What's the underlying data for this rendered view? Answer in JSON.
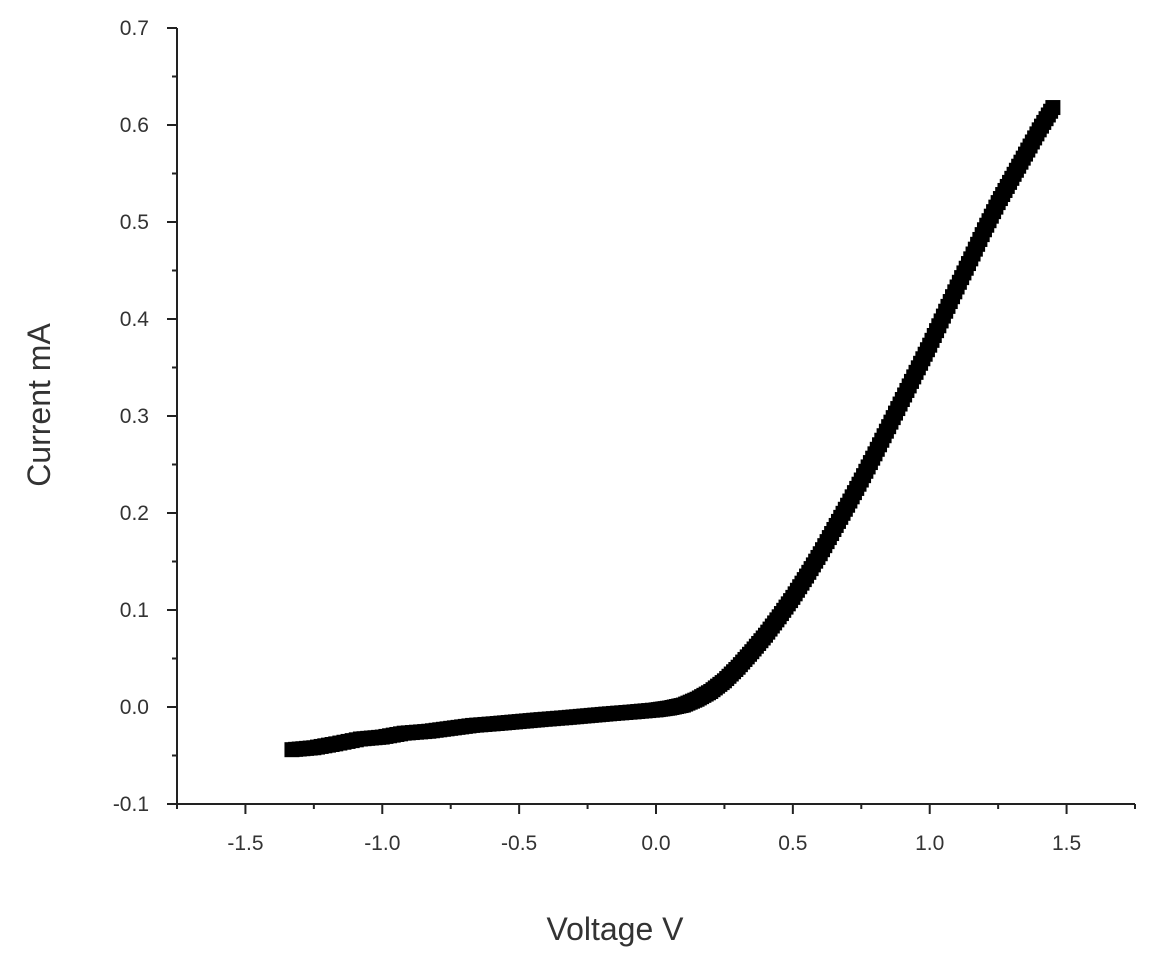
{
  "chart_data": {
    "type": "scatter",
    "xlabel": "Voltage V",
    "ylabel": "Current mA",
    "xlim": [
      -1.75,
      1.75
    ],
    "ylim": [
      -0.1,
      0.7
    ],
    "x_ticks": [
      -1.5,
      -1.0,
      -0.5,
      0.0,
      0.5,
      1.0,
      1.5
    ],
    "x_tick_labels": [
      "-1.5",
      "-1.0",
      "-0.5",
      "0.0",
      "0.5",
      "1.0",
      "1.5"
    ],
    "y_ticks": [
      -0.1,
      0.0,
      0.1,
      0.2,
      0.3,
      0.4,
      0.5,
      0.6,
      0.7
    ],
    "y_tick_labels": [
      "-0.1",
      "0.0",
      "0.1",
      "0.2",
      "0.3",
      "0.4",
      "0.5",
      "0.6",
      "0.7"
    ],
    "grid": false,
    "marker_color": "#000000",
    "series": [
      {
        "x": [
          -1.33,
          -1.25,
          -1.17,
          -1.08,
          -1.0,
          -0.92,
          -0.83,
          -0.75,
          -0.67,
          -0.58,
          -0.5,
          -0.42,
          -0.33,
          -0.25,
          -0.17,
          -0.08,
          0.0,
          0.05,
          0.1,
          0.15,
          0.2,
          0.25,
          0.3,
          0.35,
          0.4,
          0.45,
          0.5,
          0.55,
          0.6,
          0.65,
          0.7,
          0.75,
          0.8,
          0.85,
          0.9,
          0.95,
          1.0,
          1.05,
          1.1,
          1.15,
          1.2,
          1.25,
          1.3,
          1.35,
          1.4,
          1.45
        ],
        "y": [
          -0.044,
          -0.042,
          -0.038,
          -0.033,
          -0.031,
          -0.027,
          -0.025,
          -0.022,
          -0.019,
          -0.017,
          -0.015,
          -0.013,
          -0.011,
          -0.009,
          -0.007,
          -0.005,
          -0.003,
          -0.001,
          0.002,
          0.008,
          0.016,
          0.027,
          0.041,
          0.057,
          0.074,
          0.093,
          0.113,
          0.135,
          0.158,
          0.183,
          0.208,
          0.234,
          0.261,
          0.289,
          0.317,
          0.345,
          0.373,
          0.403,
          0.433,
          0.462,
          0.492,
          0.52,
          0.545,
          0.57,
          0.595,
          0.618
        ]
      }
    ]
  }
}
